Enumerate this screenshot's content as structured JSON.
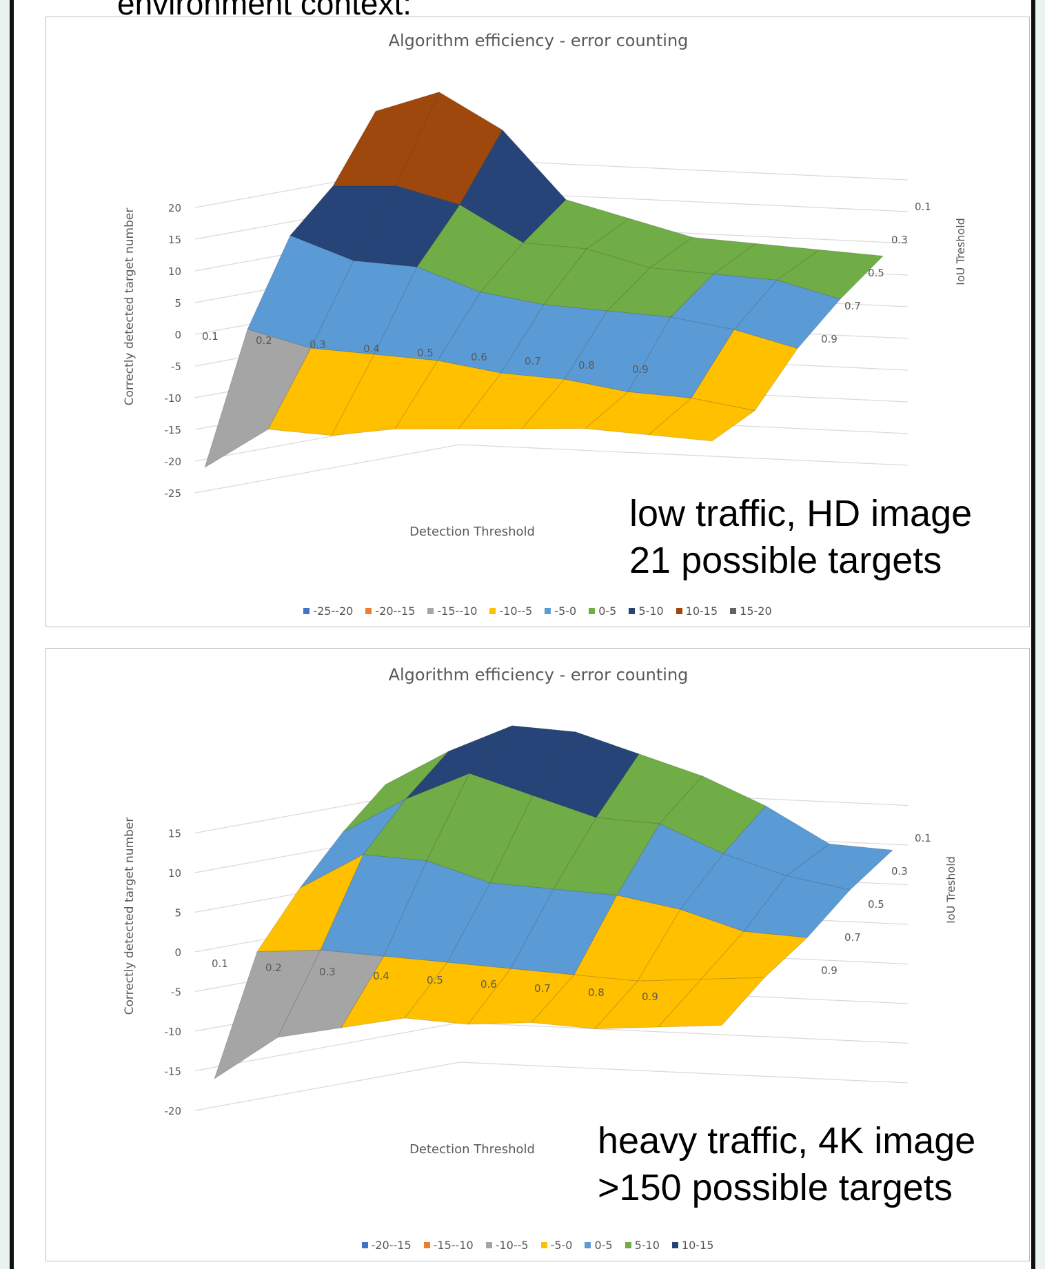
{
  "header_text": "environment context:",
  "chart_data": [
    {
      "type": "surface",
      "title": "Algorithm efficiency - error counting",
      "xlabel": "Detection Threshold",
      "ylabel": "Correctly detected target number",
      "zlabel": "IoU Treshold",
      "z_ticks": [
        "20",
        "15",
        "10",
        "5",
        "0",
        "-5",
        "-10",
        "-15",
        "-20",
        "-25"
      ],
      "x_ticks": [
        "0.1",
        "0.2",
        "0.3",
        "0.4",
        "0.5",
        "0.6",
        "0.7",
        "0.8",
        "0.9"
      ],
      "y_ticks": [
        "0.1",
        "0.3",
        "0.5",
        "0.7",
        "0.9"
      ],
      "ylim": [
        -25,
        20
      ],
      "legend": [
        "-25--20",
        "-20--15",
        "-15--10",
        "-10--5",
        "-5-0",
        "0-5",
        "5-10",
        "10-15",
        "15-20"
      ],
      "note": [
        "low traffic, HD image",
        "21 possible targets"
      ],
      "colors": [
        "#4472c4",
        "#ed7d31",
        "#a5a5a5",
        "#ffc000",
        "#5b9bd5",
        "#70ad47",
        "#264478",
        "#9e480e",
        "#636363"
      ],
      "detection_thresholds": [
        0.1,
        0.2,
        0.3,
        0.4,
        0.5,
        0.6,
        0.7,
        0.8,
        0.9
      ],
      "iou_thresholds": [
        0.1,
        0.3,
        0.5,
        0.7,
        0.9
      ],
      "values": [
        [
          16,
          20,
          15,
          5,
          3,
          1,
          1,
          1,
          1
        ],
        [
          9,
          10,
          8,
          3,
          3,
          1,
          1,
          1,
          -1
        ],
        [
          6,
          3,
          3,
          0,
          -1,
          -1,
          -1,
          -2,
          -4
        ],
        [
          -4,
          -6,
          -6,
          -6,
          -7,
          -7,
          -8,
          -8,
          -9
        ],
        [
          -21,
          -14,
          -14,
          -12,
          -11,
          -10,
          -9,
          -9,
          -9
        ]
      ]
    },
    {
      "type": "surface",
      "title": "Algorithm efficiency - error counting",
      "xlabel": "Detection Threshold",
      "ylabel": "Correctly detected target number",
      "zlabel": "IoU Treshold",
      "z_ticks": [
        "15",
        "10",
        "5",
        "0",
        "-5",
        "-10",
        "-15",
        "-20"
      ],
      "x_ticks": [
        "0.1",
        "0.2",
        "0.3",
        "0.4",
        "0.5",
        "0.6",
        "0.7",
        "0.8",
        "0.9"
      ],
      "y_ticks": [
        "0.1",
        "0.3",
        "0.5",
        "0.7",
        "0.9"
      ],
      "ylim": [
        -20,
        15
      ],
      "legend": [
        "-20--15",
        "-15--10",
        "-10--5",
        "-5-0",
        "0-5",
        "5-10",
        "10-15"
      ],
      "note": [
        "heavy traffic, 4K image",
        ">150 possible targets"
      ],
      "colors": [
        "#4472c4",
        "#ed7d31",
        "#a5a5a5",
        "#ffc000",
        "#5b9bd5",
        "#70ad47",
        "#264478"
      ],
      "detection_thresholds": [
        0.1,
        0.2,
        0.3,
        0.4,
        0.5,
        0.6,
        0.7,
        0.8,
        0.9
      ],
      "iou_thresholds": [
        0.1,
        0.3,
        0.5,
        0.7,
        0.9
      ],
      "values": [
        [
          5,
          10,
          14,
          14,
          12,
          10,
          7,
          3,
          3
        ],
        [
          3,
          8,
          12,
          10,
          8,
          8,
          5,
          3,
          2
        ],
        [
          0,
          5,
          5,
          3,
          3,
          3,
          2,
          0,
          0
        ],
        [
          -4,
          -3,
          -3,
          -3,
          -3,
          -3,
          -3,
          -2,
          -1
        ],
        [
          -16,
          -10,
          -8,
          -6,
          -6,
          -5,
          -5,
          -4,
          -3
        ]
      ]
    }
  ]
}
